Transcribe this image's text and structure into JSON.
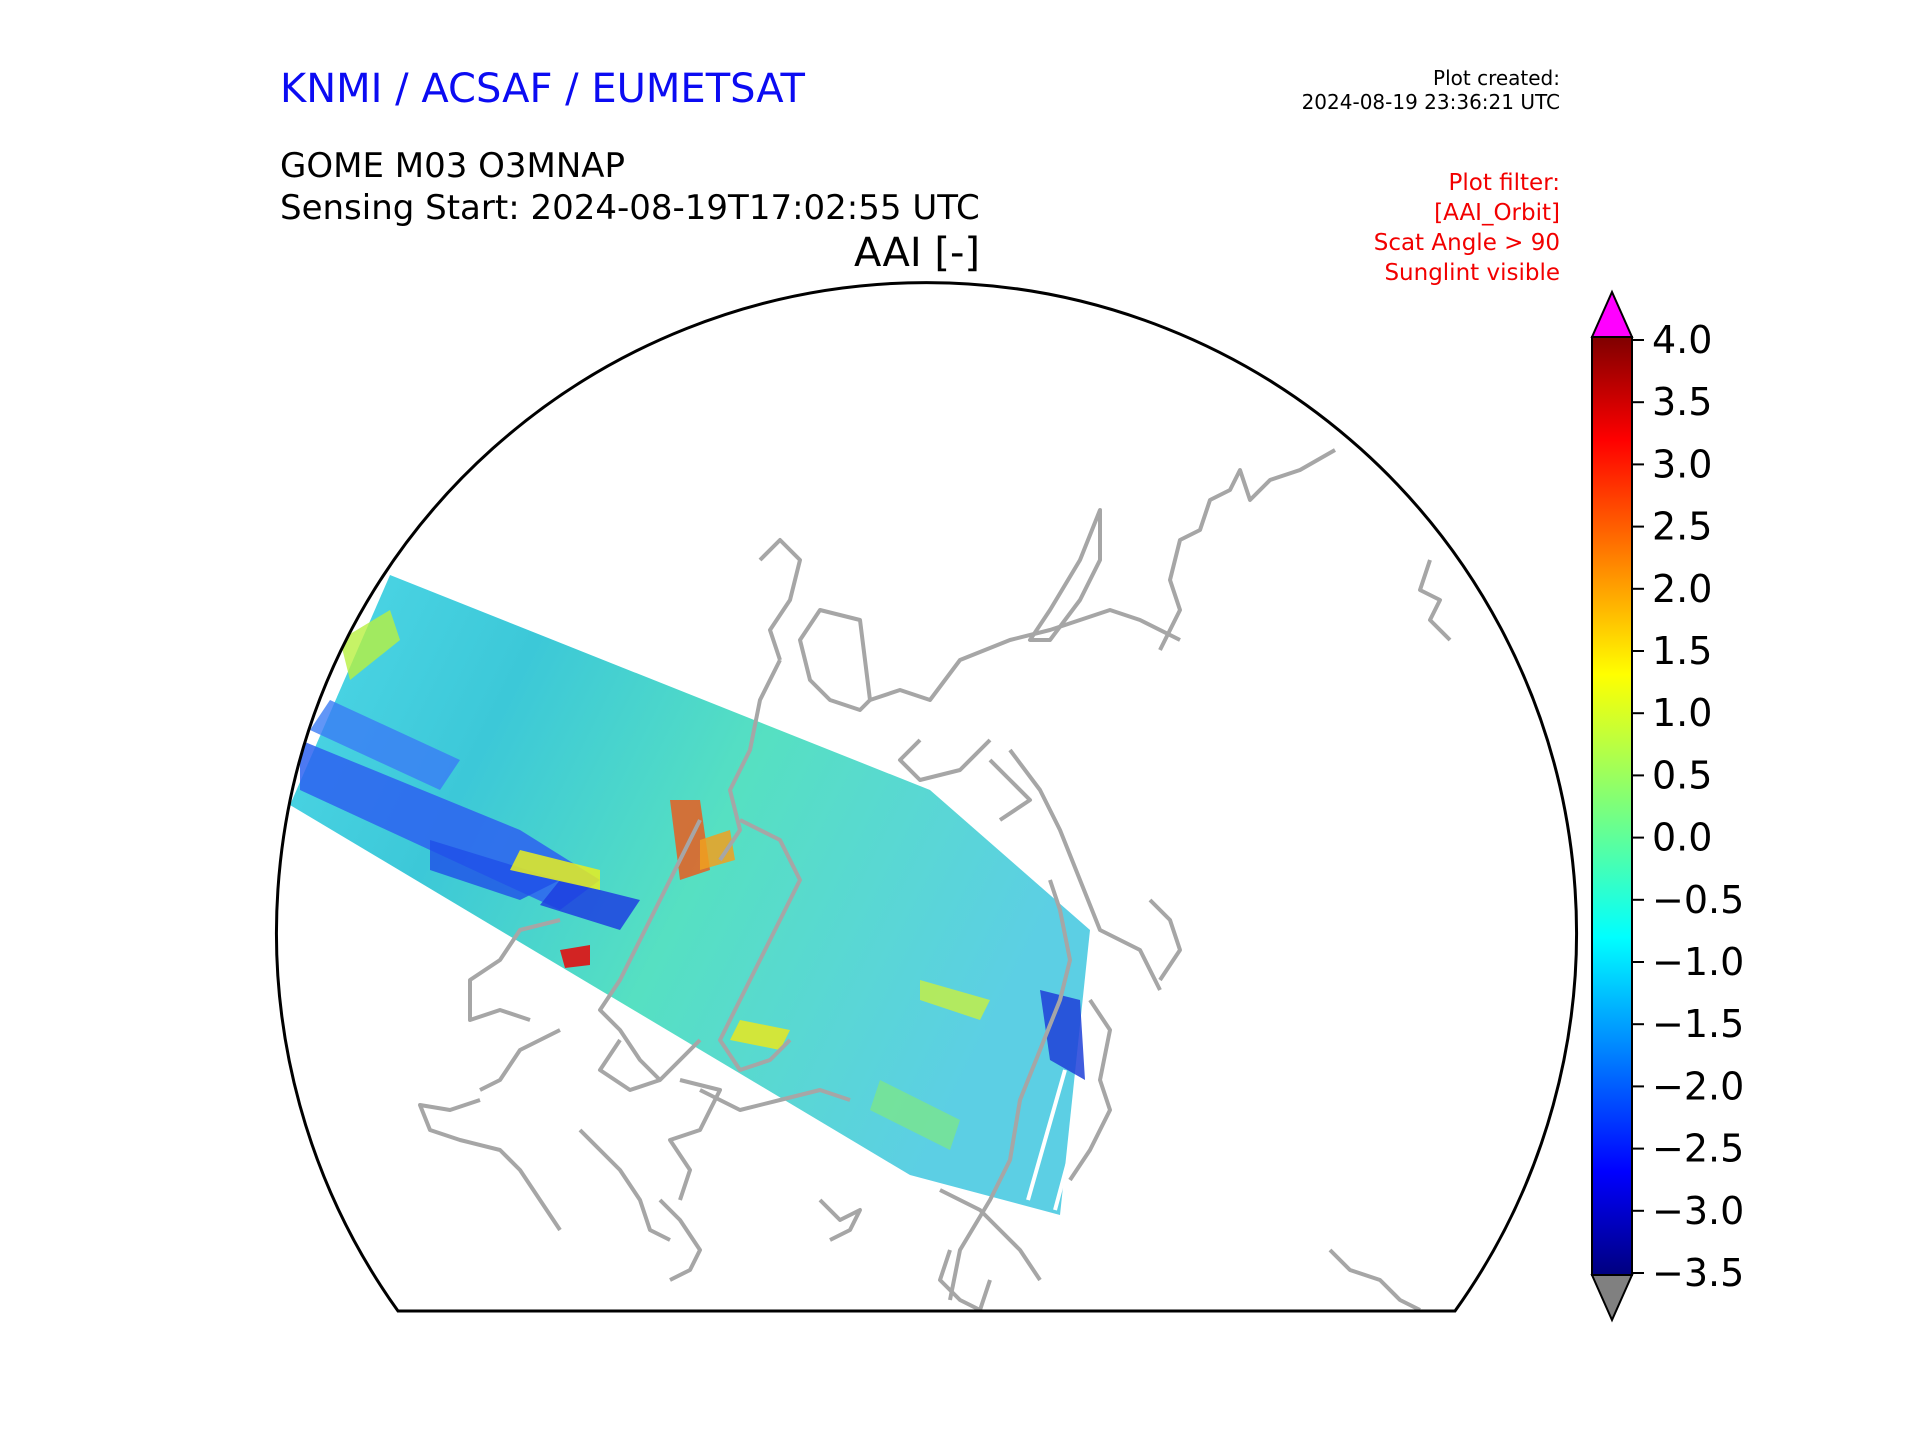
{
  "header": {
    "organisation": "KNMI / ACSAF / EUMETSAT",
    "product": "GOME M03 O3MNAP",
    "sensing_start": "Sensing Start: 2024-08-19T17:02:55 UTC",
    "variable_title": "AAI [-]"
  },
  "plot_info": {
    "created_label": "Plot created:",
    "created_time": "2024-08-19 23:36:21 UTC",
    "filter_lines": [
      "Plot filter:",
      "[AAI_Orbit]",
      "Scat Angle > 90",
      "Sunglint visible"
    ]
  },
  "colorbar": {
    "ticks": [
      "4.0",
      "3.5",
      "3.0",
      "2.5",
      "2.0",
      "1.5",
      "1.0",
      "0.5",
      "0.0",
      "−0.5",
      "−1.0",
      "−1.5",
      "−2.0",
      "−2.5",
      "−3.0",
      "−3.5"
    ],
    "over_color": "#ff00ff",
    "under_color": "#808080"
  },
  "map": {
    "projection": "north-polar-stereographic",
    "coastline_color": "#a6a6a6",
    "swath_colormap": "jet"
  }
}
